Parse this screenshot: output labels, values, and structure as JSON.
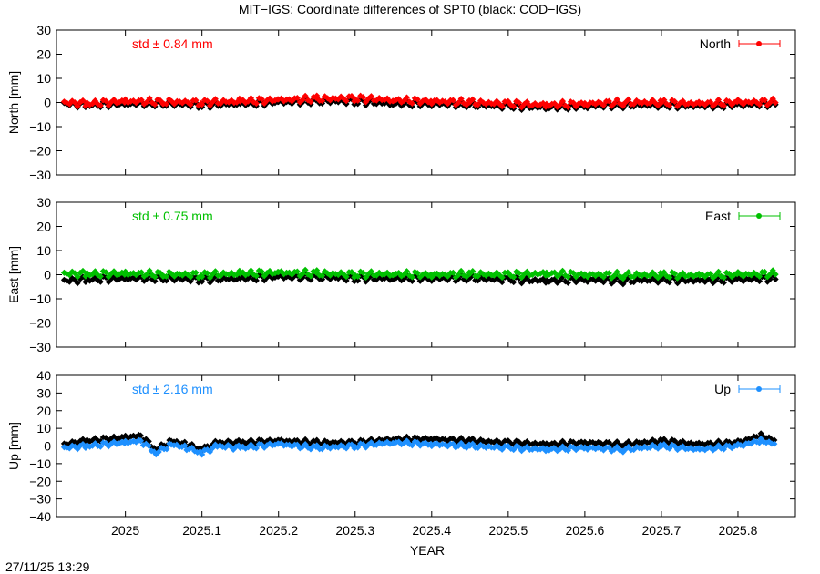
{
  "title": "MIT−IGS: Coordinate differences of SPT0 (black: COD−IGS)",
  "timestamp": "27/11/25 13:29",
  "chart_data": {
    "type": "scatter",
    "xlabel": "YEAR",
    "xlim": [
      2024.91,
      2025.875
    ],
    "xticks": [
      2025,
      2025.1,
      2025.2,
      2025.3,
      2025.4,
      2025.5,
      2025.6,
      2025.7,
      2025.8
    ],
    "xtick_labels": [
      "2025",
      "2025.1",
      "2025.2",
      "2025.3",
      "2025.4",
      "2025.5",
      "2025.6",
      "2025.7",
      "2025.8"
    ],
    "grid": false,
    "panels": [
      {
        "ylabel": "North [mm]",
        "ylim": [
          -30,
          30
        ],
        "yticks": [
          -30,
          -20,
          -10,
          0,
          10,
          20,
          30
        ],
        "ytick_labels": [
          "−30",
          "−20",
          "−10",
          "0",
          "10",
          "20",
          "30"
        ],
        "std_label": "std ± 0.84 mm",
        "legend": "North",
        "legend_position": "top-right",
        "color": "#ff0000",
        "series": [
          {
            "x": [
              2024.92,
              2024.95,
              2025.0,
              2025.05,
              2025.1,
              2025.15,
              2025.2,
              2025.25,
              2025.3,
              2025.35,
              2025.4,
              2025.45,
              2025.5,
              2025.55,
              2025.6,
              2025.65,
              2025.7,
              2025.75,
              2025.8,
              2025.85
            ],
            "y": [
              0.0,
              -0.5,
              0.5,
              0.3,
              0.0,
              0.5,
              1.0,
              1.5,
              1.8,
              1.0,
              0.5,
              0.0,
              -0.5,
              -1.0,
              -0.5,
              0.0,
              0.0,
              -0.5,
              0.0,
              0.3
            ]
          }
        ],
        "reference": {
          "x": [
            2024.92,
            2024.95,
            2025.0,
            2025.05,
            2025.1,
            2025.15,
            2025.2,
            2025.25,
            2025.3,
            2025.35,
            2025.4,
            2025.45,
            2025.5,
            2025.55,
            2025.6,
            2025.65,
            2025.7,
            2025.75,
            2025.8,
            2025.85
          ],
          "y": [
            -0.5,
            -1.0,
            -0.5,
            -0.5,
            -1.0,
            -0.5,
            0.0,
            0.5,
            0.5,
            -0.5,
            -0.5,
            -1.0,
            -1.5,
            -2.0,
            -1.5,
            -1.0,
            -1.0,
            -1.5,
            -1.0,
            -0.5
          ]
        }
      },
      {
        "ylabel": "East [mm]",
        "ylim": [
          -30,
          30
        ],
        "yticks": [
          -30,
          -20,
          -10,
          0,
          10,
          20,
          30
        ],
        "ytick_labels": [
          "−30",
          "−20",
          "−10",
          "0",
          "10",
          "20",
          "30"
        ],
        "std_label": "std ± 0.75 mm",
        "legend": "East",
        "legend_position": "top-right",
        "color": "#00c000",
        "series": [
          {
            "x": [
              2024.92,
              2024.95,
              2025.0,
              2025.05,
              2025.1,
              2025.15,
              2025.2,
              2025.25,
              2025.3,
              2025.35,
              2025.4,
              2025.45,
              2025.5,
              2025.55,
              2025.6,
              2025.65,
              2025.7,
              2025.75,
              2025.8,
              2025.85
            ],
            "y": [
              0.5,
              0.3,
              0.5,
              0.2,
              0.0,
              0.5,
              0.8,
              0.5,
              0.2,
              0.3,
              0.0,
              0.2,
              0.0,
              0.5,
              0.0,
              -0.2,
              0.0,
              -0.3,
              0.0,
              0.5
            ]
          }
        ],
        "reference": {
          "x": [
            2024.92,
            2024.95,
            2025.0,
            2025.05,
            2025.1,
            2025.15,
            2025.2,
            2025.25,
            2025.3,
            2025.35,
            2025.4,
            2025.45,
            2025.5,
            2025.55,
            2025.6,
            2025.65,
            2025.7,
            2025.75,
            2025.8,
            2025.85
          ],
          "y": [
            -2.5,
            -2.0,
            -1.5,
            -1.5,
            -2.0,
            -1.5,
            -1.0,
            -1.0,
            -1.5,
            -1.5,
            -1.5,
            -1.5,
            -2.0,
            -2.5,
            -2.0,
            -2.5,
            -2.0,
            -2.5,
            -2.0,
            -1.5
          ]
        }
      },
      {
        "ylabel": "Up [mm]",
        "ylim": [
          -40,
          40
        ],
        "yticks": [
          -40,
          -30,
          -20,
          -10,
          0,
          10,
          20,
          30,
          40
        ],
        "ytick_labels": [
          "−40",
          "−30",
          "−20",
          "−10",
          "0",
          "10",
          "20",
          "30",
          "40"
        ],
        "std_label": "std ± 2.16 mm",
        "legend": "Up",
        "legend_position": "top-right",
        "color": "#1e90ff",
        "series": [
          {
            "x": [
              2024.92,
              2024.95,
              2025.0,
              2025.02,
              2025.04,
              2025.06,
              2025.08,
              2025.1,
              2025.12,
              2025.15,
              2025.2,
              2025.25,
              2025.3,
              2025.35,
              2025.4,
              2025.45,
              2025.5,
              2025.55,
              2025.6,
              2025.65,
              2025.7,
              2025.75,
              2025.8,
              2025.83,
              2025.85
            ],
            "y": [
              -1.0,
              0.0,
              2.0,
              3.0,
              -4.0,
              1.0,
              -1.0,
              -4.0,
              0.0,
              -1.0,
              1.0,
              -1.0,
              0.0,
              2.0,
              1.0,
              0.0,
              -1.0,
              -2.0,
              -1.0,
              -2.0,
              0.0,
              -2.0,
              0.0,
              3.0,
              1.0
            ]
          }
        ],
        "reference": {
          "x": [
            2024.92,
            2024.95,
            2025.0,
            2025.02,
            2025.04,
            2025.06,
            2025.08,
            2025.1,
            2025.12,
            2025.15,
            2025.2,
            2025.25,
            2025.3,
            2025.35,
            2025.4,
            2025.45,
            2025.5,
            2025.55,
            2025.6,
            2025.65,
            2025.7,
            2025.75,
            2025.8,
            2025.83,
            2025.85
          ],
          "y": [
            1.0,
            3.0,
            5.0,
            6.0,
            -2.0,
            3.0,
            1.0,
            -2.0,
            2.0,
            2.0,
            3.0,
            2.0,
            2.0,
            4.0,
            4.0,
            3.0,
            2.0,
            1.0,
            2.0,
            1.0,
            3.0,
            1.0,
            2.0,
            6.0,
            3.0
          ]
        }
      }
    ]
  },
  "colors": {
    "reference": "#000000",
    "north": "#ff0000",
    "east": "#00c000",
    "up": "#1e90ff",
    "axis": "#000000"
  }
}
